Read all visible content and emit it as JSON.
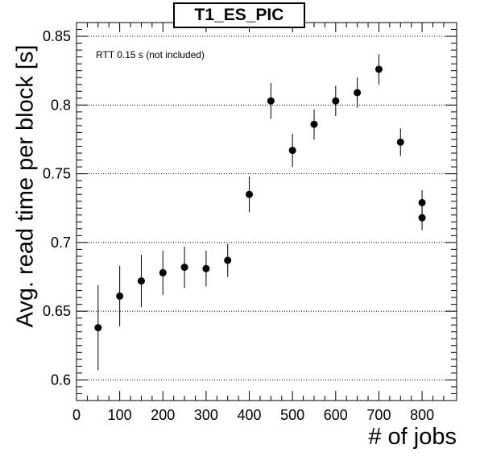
{
  "chart_data": {
    "type": "scatter",
    "title": "T1_ES_PIC",
    "xlabel": "# of jobs",
    "ylabel": "Avg. read time per block [s]",
    "annotation": "RTT 0.15 s (not included)",
    "xlim": [
      0,
      880
    ],
    "ylim": [
      0.585,
      0.86
    ],
    "xticks": [
      0,
      100,
      200,
      300,
      400,
      500,
      600,
      700,
      800
    ],
    "yticks": [
      0.6,
      0.65,
      0.7,
      0.75,
      0.8,
      0.85
    ],
    "ytick_labels": [
      "0.6",
      "0.65",
      "0.7",
      "0.75",
      "0.8",
      "0.85"
    ],
    "grid": "horizontal dotted",
    "points": [
      {
        "x": 50,
        "y": 0.638,
        "err": 0.031
      },
      {
        "x": 100,
        "y": 0.661,
        "err": 0.022
      },
      {
        "x": 150,
        "y": 0.672,
        "err": 0.019
      },
      {
        "x": 200,
        "y": 0.678,
        "err": 0.016
      },
      {
        "x": 250,
        "y": 0.682,
        "err": 0.015
      },
      {
        "x": 300,
        "y": 0.681,
        "err": 0.013
      },
      {
        "x": 350,
        "y": 0.687,
        "err": 0.012
      },
      {
        "x": 400,
        "y": 0.735,
        "err": 0.013
      },
      {
        "x": 450,
        "y": 0.803,
        "err": 0.013
      },
      {
        "x": 500,
        "y": 0.767,
        "err": 0.012
      },
      {
        "x": 550,
        "y": 0.786,
        "err": 0.011
      },
      {
        "x": 600,
        "y": 0.803,
        "err": 0.011
      },
      {
        "x": 650,
        "y": 0.809,
        "err": 0.011
      },
      {
        "x": 700,
        "y": 0.826,
        "err": 0.011
      },
      {
        "x": 750,
        "y": 0.773,
        "err": 0.01
      },
      {
        "x": 800,
        "y": 0.729,
        "err": 0.009
      },
      {
        "x": 800,
        "y": 0.718,
        "err": 0.009
      }
    ]
  }
}
